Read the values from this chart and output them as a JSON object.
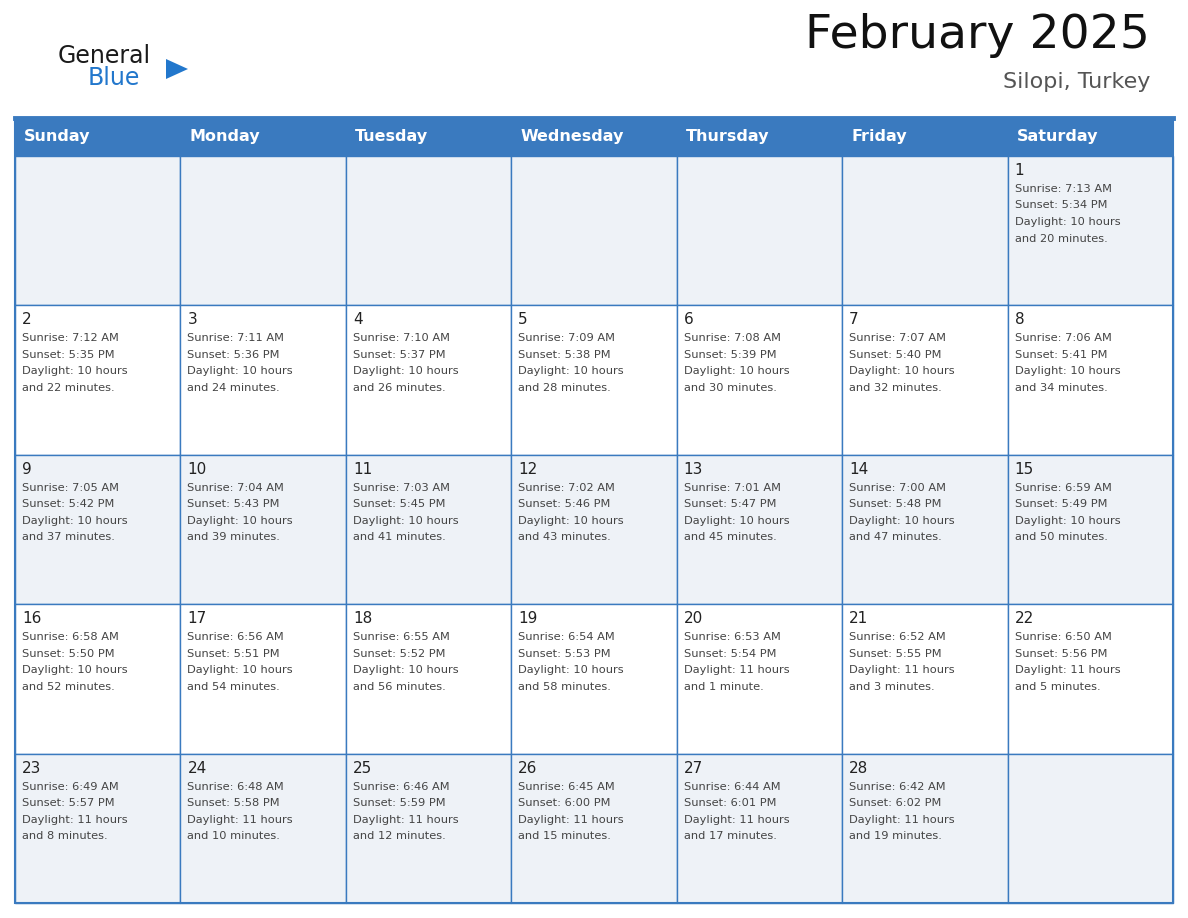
{
  "title": "February 2025",
  "subtitle": "Silopi, Turkey",
  "days_of_week": [
    "Sunday",
    "Monday",
    "Tuesday",
    "Wednesday",
    "Thursday",
    "Friday",
    "Saturday"
  ],
  "header_bg": "#3a7abf",
  "header_text": "#ffffff",
  "cell_bg_odd": "#eef2f7",
  "cell_bg_even": "#ffffff",
  "border_color": "#3a7abf",
  "text_color": "#444444",
  "day_num_color": "#222222",
  "logo_general_color": "#1a1a1a",
  "logo_blue_color": "#2277cc",
  "calendar_data": [
    [
      null,
      null,
      null,
      null,
      null,
      null,
      {
        "day": 1,
        "sunrise": "7:13 AM",
        "sunset": "5:34 PM",
        "daylight_line1": "Daylight: 10 hours",
        "daylight_line2": "and 20 minutes."
      }
    ],
    [
      {
        "day": 2,
        "sunrise": "7:12 AM",
        "sunset": "5:35 PM",
        "daylight_line1": "Daylight: 10 hours",
        "daylight_line2": "and 22 minutes."
      },
      {
        "day": 3,
        "sunrise": "7:11 AM",
        "sunset": "5:36 PM",
        "daylight_line1": "Daylight: 10 hours",
        "daylight_line2": "and 24 minutes."
      },
      {
        "day": 4,
        "sunrise": "7:10 AM",
        "sunset": "5:37 PM",
        "daylight_line1": "Daylight: 10 hours",
        "daylight_line2": "and 26 minutes."
      },
      {
        "day": 5,
        "sunrise": "7:09 AM",
        "sunset": "5:38 PM",
        "daylight_line1": "Daylight: 10 hours",
        "daylight_line2": "and 28 minutes."
      },
      {
        "day": 6,
        "sunrise": "7:08 AM",
        "sunset": "5:39 PM",
        "daylight_line1": "Daylight: 10 hours",
        "daylight_line2": "and 30 minutes."
      },
      {
        "day": 7,
        "sunrise": "7:07 AM",
        "sunset": "5:40 PM",
        "daylight_line1": "Daylight: 10 hours",
        "daylight_line2": "and 32 minutes."
      },
      {
        "day": 8,
        "sunrise": "7:06 AM",
        "sunset": "5:41 PM",
        "daylight_line1": "Daylight: 10 hours",
        "daylight_line2": "and 34 minutes."
      }
    ],
    [
      {
        "day": 9,
        "sunrise": "7:05 AM",
        "sunset": "5:42 PM",
        "daylight_line1": "Daylight: 10 hours",
        "daylight_line2": "and 37 minutes."
      },
      {
        "day": 10,
        "sunrise": "7:04 AM",
        "sunset": "5:43 PM",
        "daylight_line1": "Daylight: 10 hours",
        "daylight_line2": "and 39 minutes."
      },
      {
        "day": 11,
        "sunrise": "7:03 AM",
        "sunset": "5:45 PM",
        "daylight_line1": "Daylight: 10 hours",
        "daylight_line2": "and 41 minutes."
      },
      {
        "day": 12,
        "sunrise": "7:02 AM",
        "sunset": "5:46 PM",
        "daylight_line1": "Daylight: 10 hours",
        "daylight_line2": "and 43 minutes."
      },
      {
        "day": 13,
        "sunrise": "7:01 AM",
        "sunset": "5:47 PM",
        "daylight_line1": "Daylight: 10 hours",
        "daylight_line2": "and 45 minutes."
      },
      {
        "day": 14,
        "sunrise": "7:00 AM",
        "sunset": "5:48 PM",
        "daylight_line1": "Daylight: 10 hours",
        "daylight_line2": "and 47 minutes."
      },
      {
        "day": 15,
        "sunrise": "6:59 AM",
        "sunset": "5:49 PM",
        "daylight_line1": "Daylight: 10 hours",
        "daylight_line2": "and 50 minutes."
      }
    ],
    [
      {
        "day": 16,
        "sunrise": "6:58 AM",
        "sunset": "5:50 PM",
        "daylight_line1": "Daylight: 10 hours",
        "daylight_line2": "and 52 minutes."
      },
      {
        "day": 17,
        "sunrise": "6:56 AM",
        "sunset": "5:51 PM",
        "daylight_line1": "Daylight: 10 hours",
        "daylight_line2": "and 54 minutes."
      },
      {
        "day": 18,
        "sunrise": "6:55 AM",
        "sunset": "5:52 PM",
        "daylight_line1": "Daylight: 10 hours",
        "daylight_line2": "and 56 minutes."
      },
      {
        "day": 19,
        "sunrise": "6:54 AM",
        "sunset": "5:53 PM",
        "daylight_line1": "Daylight: 10 hours",
        "daylight_line2": "and 58 minutes."
      },
      {
        "day": 20,
        "sunrise": "6:53 AM",
        "sunset": "5:54 PM",
        "daylight_line1": "Daylight: 11 hours",
        "daylight_line2": "and 1 minute."
      },
      {
        "day": 21,
        "sunrise": "6:52 AM",
        "sunset": "5:55 PM",
        "daylight_line1": "Daylight: 11 hours",
        "daylight_line2": "and 3 minutes."
      },
      {
        "day": 22,
        "sunrise": "6:50 AM",
        "sunset": "5:56 PM",
        "daylight_line1": "Daylight: 11 hours",
        "daylight_line2": "and 5 minutes."
      }
    ],
    [
      {
        "day": 23,
        "sunrise": "6:49 AM",
        "sunset": "5:57 PM",
        "daylight_line1": "Daylight: 11 hours",
        "daylight_line2": "and 8 minutes."
      },
      {
        "day": 24,
        "sunrise": "6:48 AM",
        "sunset": "5:58 PM",
        "daylight_line1": "Daylight: 11 hours",
        "daylight_line2": "and 10 minutes."
      },
      {
        "day": 25,
        "sunrise": "6:46 AM",
        "sunset": "5:59 PM",
        "daylight_line1": "Daylight: 11 hours",
        "daylight_line2": "and 12 minutes."
      },
      {
        "day": 26,
        "sunrise": "6:45 AM",
        "sunset": "6:00 PM",
        "daylight_line1": "Daylight: 11 hours",
        "daylight_line2": "and 15 minutes."
      },
      {
        "day": 27,
        "sunrise": "6:44 AM",
        "sunset": "6:01 PM",
        "daylight_line1": "Daylight: 11 hours",
        "daylight_line2": "and 17 minutes."
      },
      {
        "day": 28,
        "sunrise": "6:42 AM",
        "sunset": "6:02 PM",
        "daylight_line1": "Daylight: 11 hours",
        "daylight_line2": "and 19 minutes."
      },
      null
    ]
  ]
}
